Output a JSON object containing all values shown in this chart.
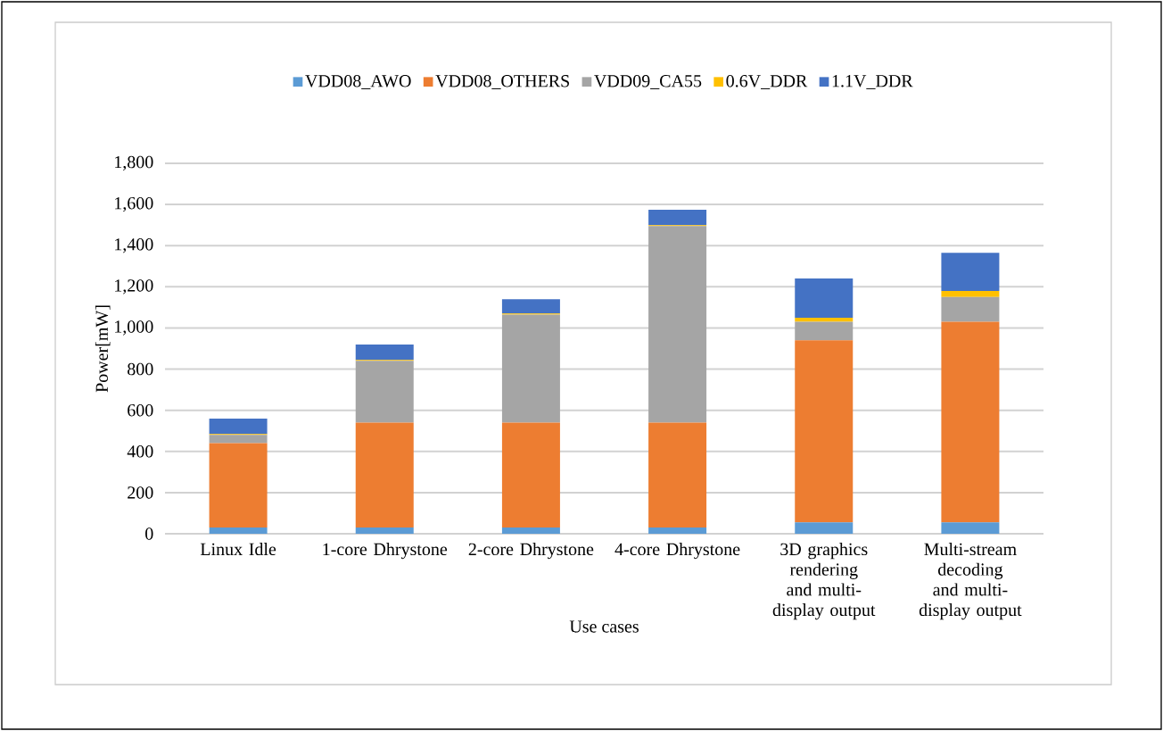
{
  "chart_data": {
    "type": "bar",
    "stacked": true,
    "xlabel": "Use cases",
    "ylabel": "Power[mW]",
    "categories": [
      "Linux Idle",
      "1-core Dhrystone",
      "2-core Dhrystone",
      "4-core Dhrystone",
      "3D graphics rendering and multi-display output",
      "Multi-stream decoding and multi-display output"
    ],
    "series": [
      {
        "name": "VDD08_AWO",
        "color": "#5b9bd5",
        "values": [
          30,
          30,
          30,
          30,
          55,
          55
        ]
      },
      {
        "name": "VDD08_OTHERS",
        "color": "#ed7d31",
        "values": [
          410,
          510,
          510,
          510,
          885,
          975
        ]
      },
      {
        "name": "VDD09_CA55",
        "color": "#a5a5a5",
        "values": [
          40,
          300,
          525,
          955,
          90,
          120
        ]
      },
      {
        "name": "0.6V_DDR",
        "color": "#ffc000",
        "values": [
          5,
          5,
          5,
          5,
          20,
          30
        ]
      },
      {
        "name": "1.1V_DDR",
        "color": "#4472c4",
        "values": [
          75,
          75,
          70,
          75,
          190,
          185
        ]
      }
    ],
    "ylim": [
      0,
      1800
    ],
    "yticks": [
      {
        "value": 0,
        "label": "0"
      },
      {
        "value": 200,
        "label": "200"
      },
      {
        "value": 400,
        "label": "400"
      },
      {
        "value": 600,
        "label": "600"
      },
      {
        "value": 800,
        "label": "800"
      },
      {
        "value": 1000,
        "label": "1,000"
      },
      {
        "value": 1200,
        "label": "1,200"
      },
      {
        "value": 1400,
        "label": "1,400"
      },
      {
        "value": 1600,
        "label": "1,600"
      },
      {
        "value": 1800,
        "label": "1,800"
      }
    ],
    "grid": "y",
    "legend": "top"
  }
}
